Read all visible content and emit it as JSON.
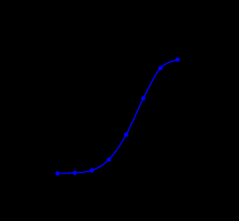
{
  "chart_data": {
    "type": "line",
    "title": "",
    "xlabel": "",
    "ylabel": "",
    "background": "#000000",
    "grid": false,
    "legend": "none",
    "x": [
      1,
      2,
      3,
      4,
      5,
      6,
      7,
      8
    ],
    "xlim": [
      0,
      9.5
    ],
    "ylim": [
      0,
      1
    ],
    "series": [
      {
        "color": "#0000ff",
        "marker": "circle",
        "smooth": true,
        "values": [
          0.02,
          0.025,
          0.045,
          0.135,
          0.34,
          0.64,
          0.89,
          0.96
        ]
      }
    ]
  }
}
